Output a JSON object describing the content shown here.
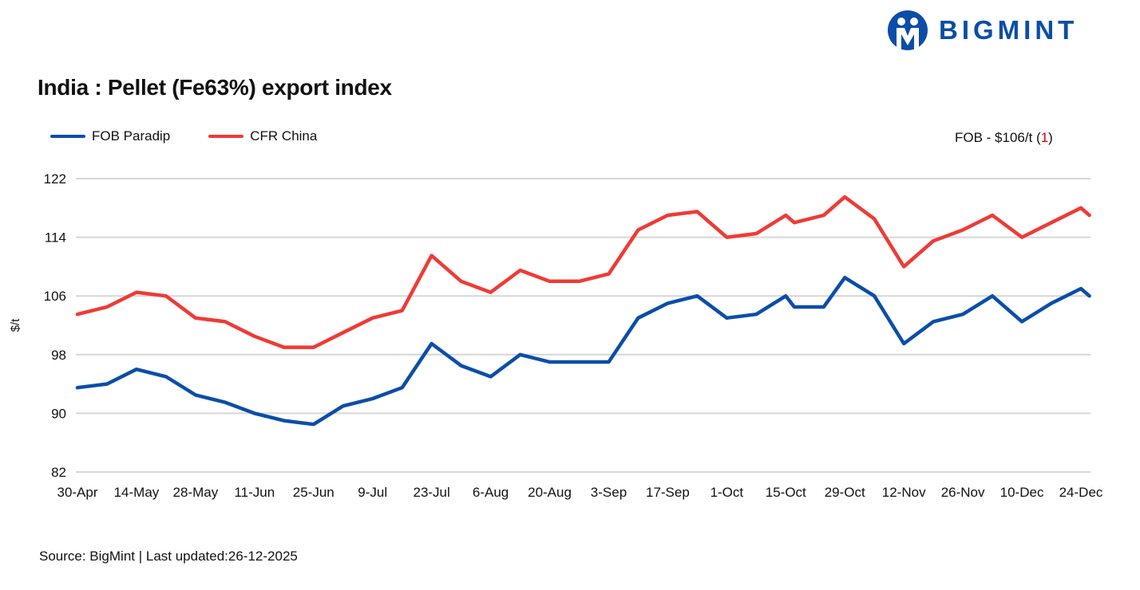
{
  "logo": {
    "text": "BIGMINT",
    "color": "#0a4ea8"
  },
  "note": {
    "prefix": "FOB - $106/t (",
    "change": "1",
    "suffix": ")",
    "change_color": "#e00000"
  },
  "source": "Source: BigMint | Last updated:26-12-2025",
  "chart_data": {
    "type": "line",
    "title": "India : Pellet (Fe63%) export index",
    "ylabel": "$/t",
    "xlabel": "",
    "ylim": [
      82,
      122
    ],
    "yticks": [
      82,
      90,
      98,
      106,
      114,
      122
    ],
    "grid": "horizontal",
    "legend_position": "top-left",
    "xtick_labels": [
      "30-Apr",
      "14-May",
      "28-May",
      "11-Jun",
      "25-Jun",
      "9-Jul",
      "23-Jul",
      "6-Aug",
      "20-Aug",
      "3-Sep",
      "17-Sep",
      "1-Oct",
      "15-Oct",
      "29-Oct",
      "12-Nov",
      "26-Nov",
      "10-Dec",
      "24-Dec"
    ],
    "x": [
      "2025-04-30",
      "2025-05-07",
      "2025-05-14",
      "2025-05-21",
      "2025-05-28",
      "2025-06-04",
      "2025-06-11",
      "2025-06-18",
      "2025-06-25",
      "2025-07-02",
      "2025-07-09",
      "2025-07-16",
      "2025-07-23",
      "2025-07-30",
      "2025-08-06",
      "2025-08-13",
      "2025-08-20",
      "2025-08-27",
      "2025-09-03",
      "2025-09-10",
      "2025-09-17",
      "2025-09-24",
      "2025-10-01",
      "2025-10-08",
      "2025-10-15",
      "2025-10-17",
      "2025-10-24",
      "2025-10-29",
      "2025-11-05",
      "2025-11-12",
      "2025-11-19",
      "2025-11-26",
      "2025-12-03",
      "2025-12-10",
      "2025-12-17",
      "2025-12-24",
      "2025-12-26"
    ],
    "series": [
      {
        "name": "FOB Paradip",
        "color": "#0a4ea8",
        "values": [
          93.5,
          94,
          96,
          95,
          92.5,
          91.5,
          90,
          89,
          88.5,
          91,
          92,
          93.5,
          99.5,
          96.5,
          95,
          98,
          97,
          97,
          97,
          103,
          105,
          106,
          103,
          103.5,
          106,
          104.5,
          104.5,
          108.5,
          106,
          99.5,
          102.5,
          103.5,
          106,
          102.5,
          105,
          107,
          106
        ]
      },
      {
        "name": "CFR China",
        "color": "#ee3b36",
        "values": [
          103.5,
          104.5,
          106.5,
          106,
          103,
          102.5,
          100.5,
          99,
          99,
          101,
          103,
          104,
          111.5,
          108,
          106.5,
          109.5,
          108,
          108,
          109,
          115,
          117,
          117.5,
          114,
          114.5,
          117,
          116,
          117,
          119.5,
          116.5,
          110,
          113.5,
          115,
          117,
          114,
          116,
          118,
          117
        ]
      }
    ]
  }
}
